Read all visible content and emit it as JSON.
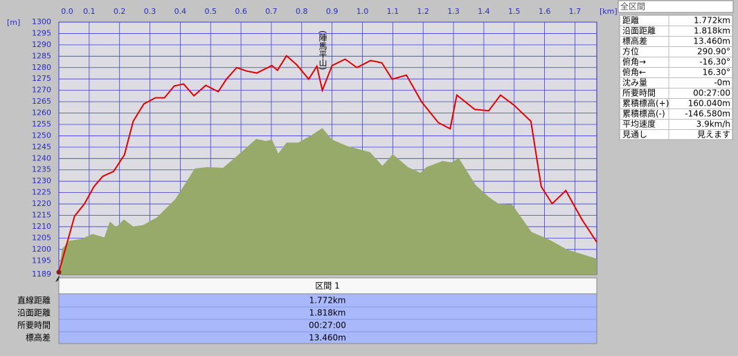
{
  "chart_data": {
    "type": "line",
    "ylabel": "[m]",
    "xlabel": "[km]",
    "annotation": "(陣馬平山)",
    "xlim": [
      0,
      1.772
    ],
    "ylim": [
      1189,
      1300
    ],
    "xticks": [
      {
        "value": 0,
        "label": "0.0"
      },
      0.1,
      0.2,
      0.3,
      0.4,
      0.5,
      0.6,
      0.7,
      0.8,
      0.9,
      {
        "value": 1,
        "label": "1.0"
      },
      1.1,
      1.2,
      1.3,
      1.4,
      1.5,
      1.6,
      1.7
    ],
    "yticks": [
      1189,
      1195,
      1200,
      1205,
      1210,
      1215,
      1220,
      1225,
      1230,
      1235,
      1240,
      1245,
      1250,
      1255,
      1260,
      1265,
      1270,
      1275,
      1280,
      1285,
      1290,
      1295,
      1300
    ],
    "grid": true,
    "series": [
      {
        "style": "area",
        "color": "#98aa6a",
        "x": [
          0,
          0.011,
          0.034,
          0.075,
          0.111,
          0.15,
          0.168,
          0.189,
          0.214,
          0.245,
          0.277,
          0.323,
          0.384,
          0.448,
          0.489,
          0.541,
          0.586,
          0.65,
          0.682,
          0.702,
          0.723,
          0.75,
          0.789,
          0.834,
          0.868,
          0.9,
          0.95,
          1.025,
          1.066,
          1.1,
          1.15,
          1.191,
          1.211,
          1.264,
          1.293,
          1.318,
          1.373,
          1.416,
          1.448,
          1.493,
          1.557,
          1.614,
          1.675,
          1.772
        ],
        "values": [
          1190,
          1200.3,
          1203.8,
          1204.7,
          1206.8,
          1205.3,
          1212.3,
          1209.8,
          1213.2,
          1210.1,
          1210.7,
          1214.1,
          1222.2,
          1235.6,
          1236.2,
          1235.9,
          1241,
          1248.6,
          1247.7,
          1248.3,
          1242.2,
          1247,
          1247,
          1250.4,
          1253.4,
          1248.3,
          1245.5,
          1242.8,
          1236.8,
          1241.9,
          1236.2,
          1233.7,
          1236.2,
          1238.9,
          1238.3,
          1240.1,
          1228.3,
          1223.1,
          1220.1,
          1219.8,
          1207.7,
          1204.4,
          1199.9,
          1195.9
        ]
      },
      {
        "style": "line",
        "color": "#e00000",
        "x": [
          0,
          0.052,
          0.084,
          0.116,
          0.145,
          0.18,
          0.216,
          0.245,
          0.28,
          0.318,
          0.348,
          0.38,
          0.411,
          0.445,
          0.484,
          0.525,
          0.552,
          0.586,
          0.618,
          0.652,
          0.702,
          0.72,
          0.75,
          0.784,
          0.823,
          0.85,
          0.868,
          0.9,
          0.943,
          0.982,
          1.027,
          1.064,
          1.098,
          1.145,
          1.195,
          1.25,
          1.289,
          1.311,
          1.37,
          1.416,
          1.455,
          1.5,
          1.555,
          1.589,
          1.625,
          1.67,
          1.723,
          1.772
        ],
        "values": [
          1190,
          1214.7,
          1220,
          1227.7,
          1232.2,
          1234.3,
          1241.6,
          1256.4,
          1264,
          1266.7,
          1266.7,
          1271.9,
          1272.8,
          1267.6,
          1272.2,
          1269.4,
          1274.9,
          1280,
          1278.5,
          1277.6,
          1280.9,
          1278.8,
          1285.2,
          1281.2,
          1274.9,
          1280.6,
          1270,
          1280.9,
          1283.7,
          1280,
          1283.1,
          1282.1,
          1274.9,
          1276.7,
          1264.9,
          1255.8,
          1253.1,
          1267.9,
          1261.6,
          1261,
          1267.9,
          1263.4,
          1256.4,
          1227.7,
          1220.1,
          1225.9,
          1213.2,
          1203.2
        ]
      }
    ]
  },
  "summary": {
    "title": "全区間",
    "rows": [
      [
        "距離",
        "1.772km"
      ],
      [
        "沿面距離",
        "1.818km"
      ],
      [
        "標高差",
        "13.460m"
      ],
      [
        "方位",
        "290.90°"
      ],
      [
        "俯角→",
        "-16.30°"
      ],
      [
        "俯角←",
        "16.30°"
      ],
      [
        "沈み量",
        "-0m"
      ],
      [
        "所要時間",
        "00:27:00"
      ],
      [
        "累積標高(+)",
        "160.040m"
      ],
      [
        "累積標高(-)",
        "-146.580m"
      ],
      [
        "平均速度",
        "3.9km/h"
      ],
      [
        "見通し",
        "見えます"
      ]
    ]
  },
  "segment_table": {
    "header": "区間 1",
    "rows": [
      [
        "直線距離",
        "1.772km"
      ],
      [
        "沿面距離",
        "1.818km"
      ],
      [
        "所要時間",
        "00:27:00"
      ],
      [
        "標高差",
        "13.460m"
      ]
    ]
  }
}
